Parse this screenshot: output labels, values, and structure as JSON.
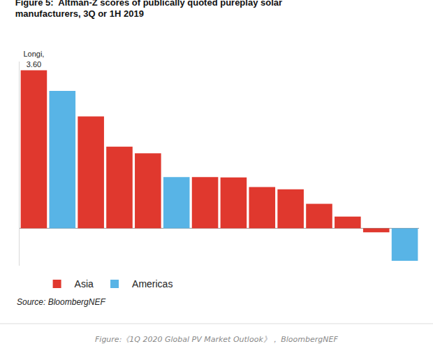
{
  "chart_data": {
    "type": "bar",
    "title": "Figure 5:  Altman-Z scores of publically quoted pureplay solar manufacturers, 3Q or 1H 2019",
    "source": "Source: BloombergNEF",
    "caption": "Figure:《1Q 2020 Global PV Market Outlook》， BloombergNEF",
    "categories": [
      "Longi, 3.60",
      null,
      null,
      null,
      null,
      null,
      null,
      null,
      null,
      null,
      null,
      null,
      null,
      null
    ],
    "series": [
      {
        "name": "Asia",
        "color": "#e0382e",
        "values": [
          3.6,
          null,
          2.55,
          1.86,
          1.71,
          null,
          1.17,
          1.16,
          0.94,
          0.89,
          0.56,
          0.27,
          -0.09,
          null
        ]
      },
      {
        "name": "Americas",
        "color": "#58b4e6",
        "values": [
          null,
          3.13,
          null,
          null,
          null,
          1.17,
          null,
          null,
          null,
          null,
          null,
          null,
          null,
          -0.74
        ]
      }
    ],
    "ylim": [
      -0.85,
      3.8
    ],
    "yticks": [],
    "tick_labels": false,
    "grid": false,
    "legend": "bottom left"
  }
}
